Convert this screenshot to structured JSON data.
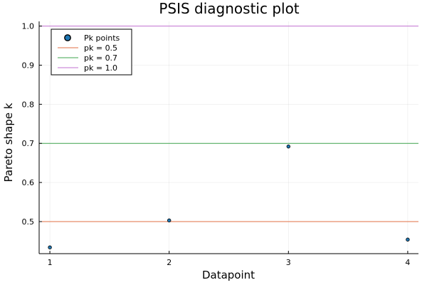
{
  "chart_data": {
    "type": "scatter",
    "title": "PSIS diagnostic plot",
    "xlabel": "Datapoint",
    "ylabel": "Pareto shape k",
    "xlim": [
      0.91,
      4.09
    ],
    "ylim": [
      0.418,
      1.012
    ],
    "xticks": [
      1,
      2,
      3,
      4
    ],
    "yticks": [
      0.5,
      0.6,
      0.7,
      0.8,
      0.9,
      1.0
    ],
    "ytick_labels": [
      "0.5",
      "0.6",
      "0.7",
      "0.8",
      "0.9",
      "1.0"
    ],
    "grid": true,
    "legend_position": "top-left",
    "series": [
      {
        "name": "Pk points",
        "kind": "scatter",
        "color": "#1f77b4",
        "x": [
          1,
          2,
          3,
          4
        ],
        "y": [
          0.434,
          0.503,
          0.692,
          0.454
        ]
      },
      {
        "name": "pk = 0.5",
        "kind": "hline",
        "color": "#e26f46",
        "y": 0.5
      },
      {
        "name": "pk = 0.7",
        "kind": "hline",
        "color": "#3da44d",
        "y": 0.7
      },
      {
        "name": "pk = 1.0",
        "kind": "hline",
        "color": "#c271d2",
        "y": 1.0
      }
    ]
  }
}
